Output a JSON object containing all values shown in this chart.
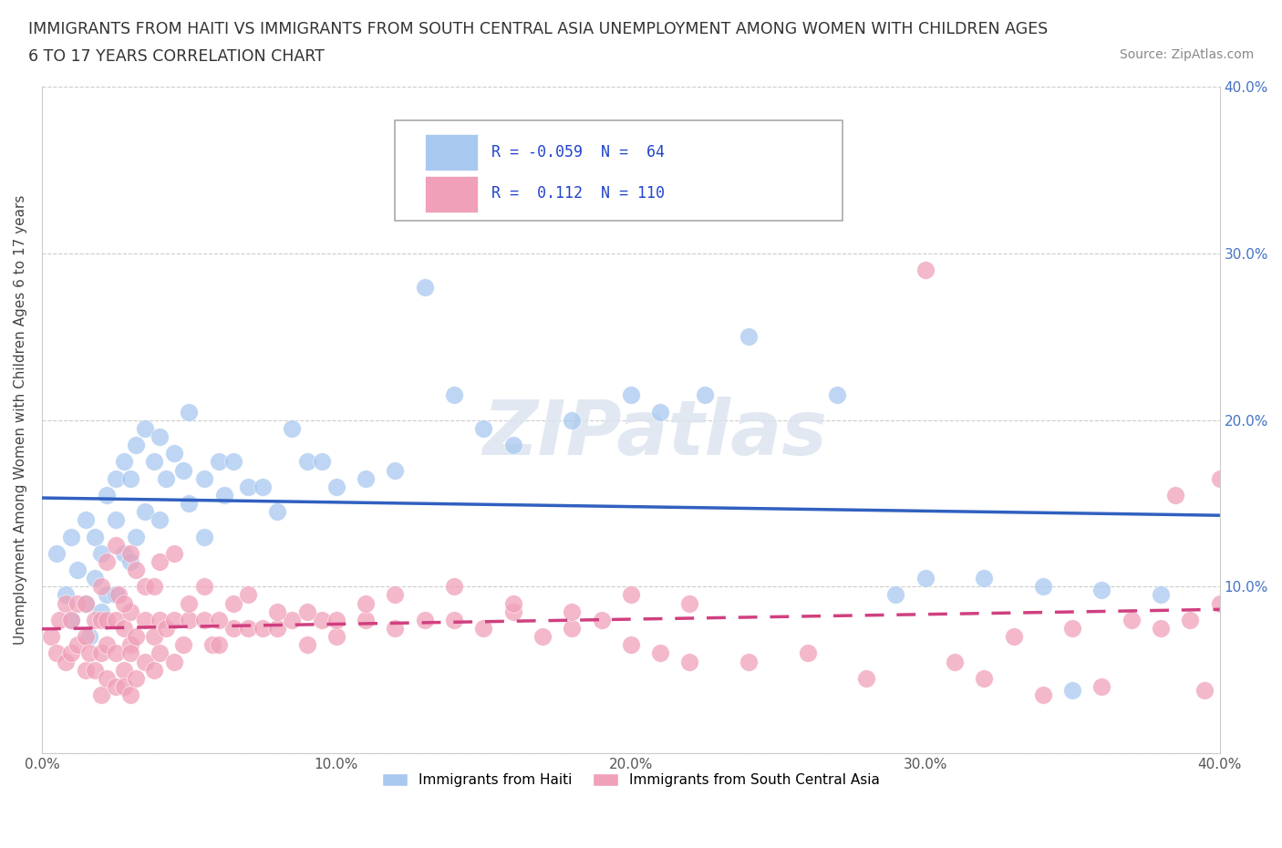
{
  "title_line1": "IMMIGRANTS FROM HAITI VS IMMIGRANTS FROM SOUTH CENTRAL ASIA UNEMPLOYMENT AMONG WOMEN WITH CHILDREN AGES",
  "title_line2": "6 TO 17 YEARS CORRELATION CHART",
  "source": "Source: ZipAtlas.com",
  "ylabel": "Unemployment Among Women with Children Ages 6 to 17 years",
  "xlim": [
    0.0,
    0.4
  ],
  "ylim": [
    0.0,
    0.4
  ],
  "xticks": [
    0.0,
    0.1,
    0.2,
    0.3,
    0.4
  ],
  "yticks": [
    0.0,
    0.1,
    0.2,
    0.3,
    0.4
  ],
  "xticklabels": [
    "0.0%",
    "10.0%",
    "20.0%",
    "30.0%",
    "40.0%"
  ],
  "yticklabels_right": [
    "",
    "10.0%",
    "20.0%",
    "30.0%",
    "40.0%"
  ],
  "haiti_R": -0.059,
  "haiti_N": 64,
  "asia_R": 0.112,
  "asia_N": 110,
  "haiti_color": "#a8c8f0",
  "haiti_line_color": "#3060c0",
  "asia_color": "#f0a0b8",
  "asia_line_color": "#d04080",
  "background_color": "#ffffff",
  "watermark": "ZIPatlas",
  "grid_color": "#cccccc",
  "haiti_x": [
    0.005,
    0.008,
    0.01,
    0.01,
    0.012,
    0.015,
    0.015,
    0.016,
    0.018,
    0.018,
    0.02,
    0.02,
    0.022,
    0.022,
    0.025,
    0.025,
    0.025,
    0.028,
    0.028,
    0.03,
    0.03,
    0.032,
    0.032,
    0.035,
    0.035,
    0.038,
    0.04,
    0.04,
    0.042,
    0.045,
    0.048,
    0.05,
    0.05,
    0.055,
    0.055,
    0.06,
    0.062,
    0.065,
    0.07,
    0.075,
    0.08,
    0.085,
    0.09,
    0.095,
    0.1,
    0.11,
    0.12,
    0.13,
    0.14,
    0.15,
    0.16,
    0.18,
    0.2,
    0.21,
    0.225,
    0.24,
    0.27,
    0.29,
    0.3,
    0.32,
    0.34,
    0.35,
    0.36,
    0.38
  ],
  "haiti_y": [
    0.12,
    0.095,
    0.13,
    0.08,
    0.11,
    0.14,
    0.09,
    0.07,
    0.13,
    0.105,
    0.12,
    0.085,
    0.155,
    0.095,
    0.165,
    0.14,
    0.095,
    0.175,
    0.12,
    0.165,
    0.115,
    0.185,
    0.13,
    0.195,
    0.145,
    0.175,
    0.19,
    0.14,
    0.165,
    0.18,
    0.17,
    0.205,
    0.15,
    0.165,
    0.13,
    0.175,
    0.155,
    0.175,
    0.16,
    0.16,
    0.145,
    0.195,
    0.175,
    0.175,
    0.16,
    0.165,
    0.17,
    0.28,
    0.215,
    0.195,
    0.185,
    0.2,
    0.215,
    0.205,
    0.215,
    0.25,
    0.215,
    0.095,
    0.105,
    0.105,
    0.1,
    0.038,
    0.098,
    0.095
  ],
  "asia_x": [
    0.003,
    0.005,
    0.006,
    0.008,
    0.008,
    0.01,
    0.01,
    0.012,
    0.012,
    0.015,
    0.015,
    0.015,
    0.016,
    0.018,
    0.018,
    0.02,
    0.02,
    0.02,
    0.022,
    0.022,
    0.022,
    0.025,
    0.025,
    0.025,
    0.026,
    0.028,
    0.028,
    0.028,
    0.03,
    0.03,
    0.03,
    0.03,
    0.032,
    0.032,
    0.035,
    0.035,
    0.038,
    0.038,
    0.04,
    0.04,
    0.042,
    0.045,
    0.045,
    0.048,
    0.05,
    0.055,
    0.058,
    0.06,
    0.065,
    0.07,
    0.075,
    0.08,
    0.085,
    0.09,
    0.095,
    0.1,
    0.11,
    0.12,
    0.13,
    0.14,
    0.15,
    0.16,
    0.17,
    0.18,
    0.19,
    0.2,
    0.21,
    0.22,
    0.24,
    0.26,
    0.28,
    0.3,
    0.31,
    0.32,
    0.33,
    0.34,
    0.35,
    0.36,
    0.37,
    0.38,
    0.385,
    0.39,
    0.395,
    0.4,
    0.4,
    0.02,
    0.022,
    0.025,
    0.028,
    0.03,
    0.032,
    0.035,
    0.038,
    0.04,
    0.045,
    0.05,
    0.055,
    0.06,
    0.065,
    0.07,
    0.08,
    0.09,
    0.1,
    0.11,
    0.12,
    0.14,
    0.16,
    0.18,
    0.2,
    0.22
  ],
  "asia_y": [
    0.07,
    0.06,
    0.08,
    0.055,
    0.09,
    0.06,
    0.08,
    0.065,
    0.09,
    0.05,
    0.07,
    0.09,
    0.06,
    0.08,
    0.05,
    0.06,
    0.08,
    0.035,
    0.045,
    0.065,
    0.08,
    0.06,
    0.08,
    0.04,
    0.095,
    0.05,
    0.075,
    0.04,
    0.065,
    0.085,
    0.035,
    0.06,
    0.045,
    0.07,
    0.08,
    0.055,
    0.07,
    0.05,
    0.08,
    0.06,
    0.075,
    0.08,
    0.055,
    0.065,
    0.08,
    0.08,
    0.065,
    0.065,
    0.075,
    0.075,
    0.075,
    0.075,
    0.08,
    0.065,
    0.08,
    0.07,
    0.08,
    0.075,
    0.08,
    0.08,
    0.075,
    0.085,
    0.07,
    0.075,
    0.08,
    0.065,
    0.06,
    0.055,
    0.055,
    0.06,
    0.045,
    0.29,
    0.055,
    0.045,
    0.07,
    0.035,
    0.075,
    0.04,
    0.08,
    0.075,
    0.155,
    0.08,
    0.038,
    0.165,
    0.09,
    0.1,
    0.115,
    0.125,
    0.09,
    0.12,
    0.11,
    0.1,
    0.1,
    0.115,
    0.12,
    0.09,
    0.1,
    0.08,
    0.09,
    0.095,
    0.085,
    0.085,
    0.08,
    0.09,
    0.095,
    0.1,
    0.09,
    0.085,
    0.095,
    0.09
  ]
}
